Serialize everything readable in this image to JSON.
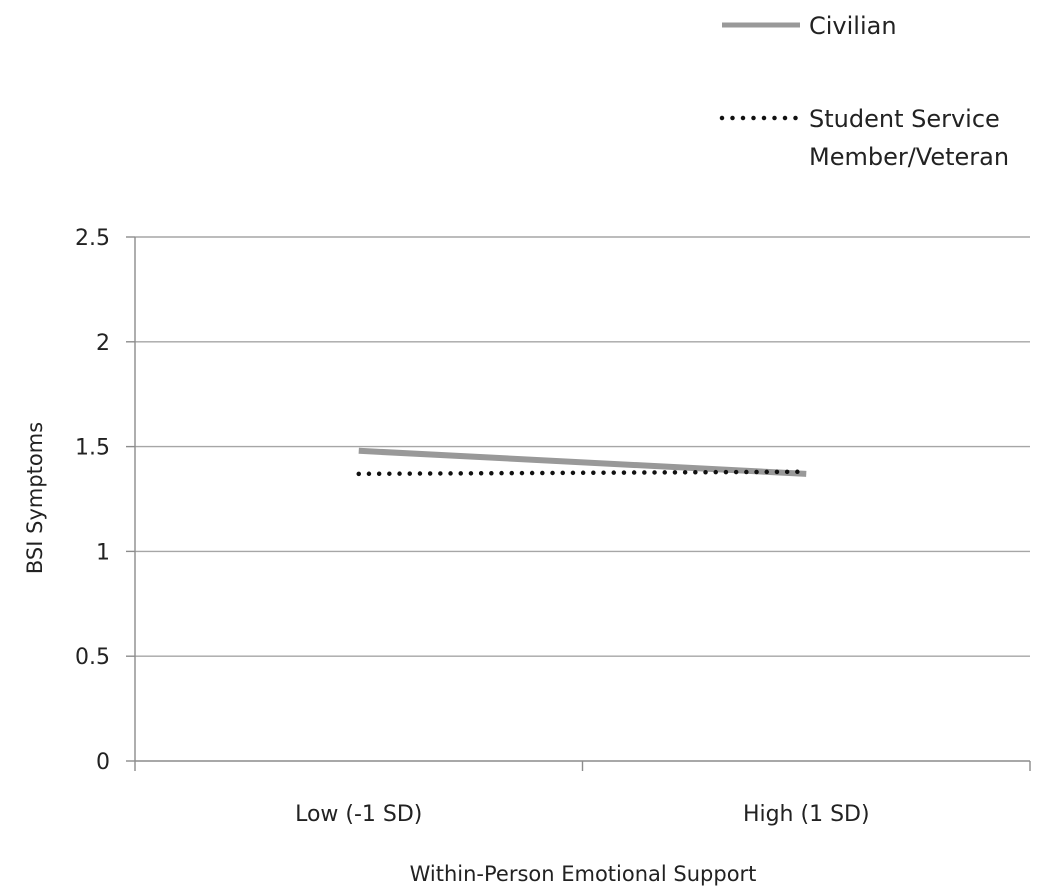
{
  "chart_data": {
    "type": "line",
    "title": "",
    "xlabel": "Within-Person Emotional Support",
    "ylabel": "BSI Symptoms",
    "categories": [
      "Low (-1 SD)",
      "High (1 SD)"
    ],
    "ylim": [
      0,
      2.5
    ],
    "yticks": [
      "0",
      "0.5",
      "1",
      "1.5",
      "2",
      "2.5"
    ],
    "grid": true,
    "legend_position": "top-right",
    "series": [
      {
        "name": "Civilian",
        "name_lines": [
          "Civilian"
        ],
        "values": [
          1.48,
          1.37
        ],
        "style": "solid",
        "color": "#999999"
      },
      {
        "name": "Student Service Member/Veteran",
        "name_lines": [
          "Student Service",
          "Member/Veteran"
        ],
        "values": [
          1.37,
          1.38
        ],
        "style": "dotted",
        "color": "#111111"
      }
    ]
  }
}
